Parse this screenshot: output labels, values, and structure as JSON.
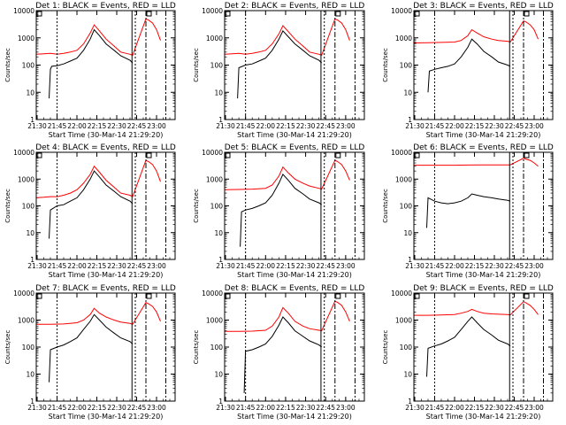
{
  "figure": {
    "panels": [
      {
        "title": "Det 1: BLACK = Events, RED = LLD",
        "xlabel": "Start Time (30-Mar-14 21:29:20)",
        "ylabel": "Counts/sec"
      },
      {
        "title": "Det 2: BLACK = Events, RED = LLD",
        "xlabel": "Start Time (30-Mar-14 21:29:20)",
        "ylabel": "Counts/sec"
      },
      {
        "title": "Det 3: BLACK = Events, RED = LLD",
        "xlabel": "Start Time (30-Mar-14 21:29:20)",
        "ylabel": "Counts/sec"
      },
      {
        "title": "Det 4: BLACK = Events, RED = LLD",
        "xlabel": "Start Time (30-Mar-14 21:29:20)",
        "ylabel": "Counts/sec"
      },
      {
        "title": "Det 5: BLACK = Events, RED = LLD",
        "xlabel": "Start Time (30-Mar-14 21:29:20)",
        "ylabel": "Counts/sec"
      },
      {
        "title": "Det 6: BLACK = Events, RED = LLD",
        "xlabel": "Start Time (30-Mar-14 21:29:20)",
        "ylabel": "Counts/sec"
      },
      {
        "title": "Det 7: BLACK = Events, RED = LLD",
        "xlabel": "Start Time (30-Mar-14 21:29:20)",
        "ylabel": "Counts/sec"
      },
      {
        "title": "Det 8: BLACK = Events, RED = LLD",
        "xlabel": "Start Time (30-Mar-14 21:29:20)",
        "ylabel": "Counts/sec"
      },
      {
        "title": "Det 9: BLACK = Events, RED = LLD",
        "xlabel": "Start Time (30-Mar-14 21:29:20)",
        "ylabel": "Counts/sec"
      }
    ],
    "xticks": [
      "21:30",
      "21:45",
      "22:00",
      "22:15",
      "22:30",
      "22:45",
      "23:00"
    ],
    "yticks": [
      "1",
      "10",
      "100",
      "1000",
      "10000"
    ],
    "colors": {
      "events": "#000000",
      "lld": "#ff0000",
      "axes": "#000000"
    }
  },
  "chart_data": [
    {
      "type": "line",
      "title": "Det 1: BLACK = Events, RED = LLD",
      "xlabel": "Start Time (30-Mar-14 21:29:20)",
      "ylabel": "Counts/sec",
      "yscale": "log",
      "ylim": [
        1,
        10000
      ],
      "xlim": [
        "21:29:20",
        "23:14"
      ],
      "series": [
        {
          "name": "Events",
          "color": "#000000",
          "x": [
            "21:39",
            "21:40",
            "21:41",
            "21:45",
            "21:50",
            "21:55",
            "22:00",
            "22:05",
            "22:10",
            "22:13",
            "22:17",
            "22:22",
            "22:28",
            "22:33",
            "22:40",
            "22:42",
            "22:45",
            "22:48",
            "22:52",
            "22:58"
          ],
          "y": [
            6,
            70,
            90,
            95,
            110,
            140,
            180,
            350,
            900,
            2000,
            1200,
            600,
            350,
            220,
            150,
            120,
            null,
            null,
            null,
            null
          ]
        },
        {
          "name": "LLD",
          "color": "#ff0000",
          "x": [
            "21:29",
            "21:35",
            "21:40",
            "21:45",
            "21:50",
            "21:55",
            "22:00",
            "22:05",
            "22:10",
            "22:13",
            "22:17",
            "22:22",
            "22:28",
            "22:33",
            "22:40",
            "22:42",
            "22:52",
            "22:54",
            "22:57",
            "23:00",
            "23:03"
          ],
          "y": [
            250,
            260,
            270,
            250,
            270,
            300,
            350,
            600,
            1500,
            3000,
            1800,
            900,
            500,
            300,
            250,
            230,
            5000,
            4500,
            3500,
            2000,
            800
          ]
        }
      ]
    },
    {
      "type": "line",
      "title": "Det 2: BLACK = Events, RED = LLD",
      "xlabel": "Start Time (30-Mar-14 21:29:20)",
      "ylabel": "Counts/sec",
      "yscale": "log",
      "ylim": [
        1,
        10000
      ],
      "xlim": [
        "21:29:20",
        "23:14"
      ],
      "series": [
        {
          "name": "Events",
          "color": "#000000",
          "x": [
            "21:39",
            "21:40",
            "21:45",
            "21:50",
            "21:55",
            "22:00",
            "22:05",
            "22:10",
            "22:13",
            "22:17",
            "22:22",
            "22:28",
            "22:33",
            "22:40",
            "22:42"
          ],
          "y": [
            6,
            80,
            100,
            110,
            140,
            180,
            350,
            900,
            1800,
            1100,
            600,
            350,
            220,
            150,
            120
          ]
        },
        {
          "name": "LLD",
          "color": "#ff0000",
          "x": [
            "21:29",
            "21:35",
            "21:40",
            "21:45",
            "21:50",
            "21:55",
            "22:00",
            "22:05",
            "22:10",
            "22:13",
            "22:17",
            "22:22",
            "22:28",
            "22:33",
            "22:40",
            "22:42",
            "22:52",
            "22:54",
            "22:57",
            "23:00",
            "23:03"
          ],
          "y": [
            250,
            260,
            270,
            250,
            270,
            300,
            350,
            600,
            1400,
            2800,
            1700,
            900,
            500,
            300,
            250,
            230,
            5000,
            4500,
            3500,
            2000,
            800
          ]
        }
      ]
    },
    {
      "type": "line",
      "title": "Det 3: BLACK = Events, RED = LLD",
      "xlabel": "Start Time (30-Mar-14 21:29:20)",
      "ylabel": "Counts/sec",
      "yscale": "log",
      "ylim": [
        1,
        10000
      ],
      "xlim": [
        "21:29:20",
        "23:14"
      ],
      "series": [
        {
          "name": "Events",
          "color": "#000000",
          "x": [
            "21:40",
            "21:41",
            "21:45",
            "21:50",
            "21:55",
            "22:00",
            "22:05",
            "22:10",
            "22:13",
            "22:17",
            "22:22",
            "22:28",
            "22:33",
            "22:40",
            "22:42"
          ],
          "y": [
            10,
            60,
            70,
            80,
            90,
            110,
            200,
            450,
            900,
            600,
            320,
            200,
            130,
            100,
            90
          ]
        },
        {
          "name": "LLD",
          "color": "#ff0000",
          "x": [
            "21:29",
            "21:40",
            "21:50",
            "22:00",
            "22:05",
            "22:10",
            "22:13",
            "22:17",
            "22:22",
            "22:28",
            "22:33",
            "22:40",
            "22:42",
            "22:52",
            "22:54",
            "22:57",
            "23:00",
            "23:03"
          ],
          "y": [
            650,
            660,
            680,
            700,
            800,
            1200,
            2000,
            1500,
            1100,
            900,
            800,
            750,
            700,
            4200,
            3800,
            3000,
            2000,
            900
          ]
        }
      ]
    },
    {
      "type": "line",
      "title": "Det 4: BLACK = Events, RED = LLD",
      "xlabel": "Start Time (30-Mar-14 21:29:20)",
      "ylabel": "Counts/sec",
      "yscale": "log",
      "ylim": [
        1,
        10000
      ],
      "xlim": [
        "21:29:20",
        "23:14"
      ],
      "series": [
        {
          "name": "Events",
          "color": "#000000",
          "x": [
            "21:39",
            "21:40",
            "21:45",
            "21:50",
            "21:55",
            "22:00",
            "22:05",
            "22:10",
            "22:13",
            "22:17",
            "22:22",
            "22:28",
            "22:33",
            "22:40",
            "22:42"
          ],
          "y": [
            6,
            70,
            100,
            110,
            150,
            200,
            400,
            1000,
            2000,
            1200,
            600,
            350,
            220,
            150,
            120
          ]
        },
        {
          "name": "LLD",
          "color": "#ff0000",
          "x": [
            "21:29",
            "21:35",
            "21:40",
            "21:45",
            "21:50",
            "21:55",
            "22:00",
            "22:05",
            "22:10",
            "22:13",
            "22:17",
            "22:22",
            "22:28",
            "22:33",
            "22:40",
            "22:42",
            "22:52",
            "22:54",
            "22:57",
            "23:00",
            "23:03"
          ],
          "y": [
            200,
            210,
            220,
            220,
            250,
            300,
            400,
            700,
            1500,
            3000,
            1800,
            900,
            500,
            300,
            250,
            220,
            5000,
            4500,
            3500,
            2000,
            800
          ]
        }
      ]
    },
    {
      "type": "line",
      "title": "Det 5: BLACK = Events, RED = LLD",
      "xlabel": "Start Time (30-Mar-14 21:29:20)",
      "ylabel": "Counts/sec",
      "yscale": "log",
      "ylim": [
        1,
        10000
      ],
      "xlim": [
        "21:29:20",
        "23:14"
      ],
      "series": [
        {
          "name": "Events",
          "color": "#000000",
          "x": [
            "21:41",
            "21:42",
            "21:45",
            "21:50",
            "21:55",
            "22:00",
            "22:05",
            "22:10",
            "22:13",
            "22:17",
            "22:22",
            "22:28",
            "22:33",
            "22:40",
            "22:42"
          ],
          "y": [
            3,
            60,
            70,
            80,
            100,
            130,
            250,
            700,
            1500,
            900,
            450,
            280,
            180,
            130,
            110
          ]
        },
        {
          "name": "LLD",
          "color": "#ff0000",
          "x": [
            "21:29",
            "21:40",
            "21:50",
            "22:00",
            "22:05",
            "22:10",
            "22:13",
            "22:17",
            "22:22",
            "22:28",
            "22:33",
            "22:40",
            "22:42",
            "22:52",
            "22:54",
            "22:57",
            "23:00",
            "23:03"
          ],
          "y": [
            400,
            410,
            420,
            450,
            600,
            1300,
            2800,
            1700,
            1000,
            700,
            550,
            450,
            420,
            5000,
            4500,
            3500,
            2000,
            900
          ]
        }
      ]
    },
    {
      "type": "line",
      "title": "Det 6: BLACK = Events, RED = LLD",
      "xlabel": "Start Time (30-Mar-14 21:29:20)",
      "ylabel": "Counts/sec",
      "yscale": "log",
      "ylim": [
        1,
        10000
      ],
      "xlim": [
        "21:29:20",
        "23:14"
      ],
      "series": [
        {
          "name": "Events",
          "color": "#000000",
          "x": [
            "21:39",
            "21:40",
            "21:45",
            "21:50",
            "21:55",
            "22:00",
            "22:05",
            "22:10",
            "22:13",
            "22:17",
            "22:22",
            "22:28",
            "22:33",
            "22:40",
            "22:42"
          ],
          "y": [
            15,
            200,
            150,
            130,
            120,
            130,
            150,
            200,
            280,
            250,
            220,
            200,
            180,
            160,
            150
          ]
        },
        {
          "name": "LLD",
          "color": "#ff0000",
          "x": [
            "21:29",
            "21:40",
            "21:50",
            "22:00",
            "22:10",
            "22:20",
            "22:30",
            "22:40",
            "22:42",
            "22:52",
            "22:54",
            "22:57",
            "23:00",
            "23:03"
          ],
          "y": [
            3300,
            3300,
            3300,
            3300,
            3350,
            3400,
            3400,
            3400,
            3400,
            6000,
            5500,
            5000,
            4000,
            3000
          ]
        }
      ]
    },
    {
      "type": "line",
      "title": "Det 7: BLACK = Events, RED = LLD",
      "xlabel": "Start Time (30-Mar-14 21:29:20)",
      "ylabel": "Counts/sec",
      "yscale": "log",
      "ylim": [
        1,
        10000
      ],
      "xlim": [
        "21:29:20",
        "23:14"
      ],
      "series": [
        {
          "name": "Events",
          "color": "#000000",
          "x": [
            "21:39",
            "21:40",
            "21:45",
            "21:50",
            "21:55",
            "22:00",
            "22:05",
            "22:10",
            "22:13",
            "22:17",
            "22:22",
            "22:28",
            "22:33",
            "22:40",
            "22:42"
          ],
          "y": [
            5,
            80,
            100,
            120,
            160,
            220,
            450,
            900,
            1600,
            1000,
            550,
            330,
            220,
            160,
            130
          ]
        },
        {
          "name": "LLD",
          "color": "#ff0000",
          "x": [
            "21:29",
            "21:40",
            "21:50",
            "22:00",
            "22:05",
            "22:10",
            "22:13",
            "22:17",
            "22:22",
            "22:28",
            "22:33",
            "22:40",
            "22:42",
            "22:52",
            "22:54",
            "22:57",
            "23:00",
            "23:03"
          ],
          "y": [
            700,
            700,
            720,
            800,
            1000,
            1600,
            2700,
            1800,
            1300,
            1000,
            850,
            750,
            700,
            4500,
            4000,
            3200,
            2000,
            900
          ]
        }
      ]
    },
    {
      "type": "line",
      "title": "Det 8: BLACK = Events, RED = LLD",
      "xlabel": "Start Time (30-Mar-14 21:29:20)",
      "ylabel": "Counts/sec",
      "yscale": "log",
      "ylim": [
        1,
        10000
      ],
      "xlim": [
        "21:29:20",
        "23:14"
      ],
      "series": [
        {
          "name": "Events",
          "color": "#000000",
          "x": [
            "21:44",
            "21:45",
            "21:50",
            "21:55",
            "22:00",
            "22:05",
            "22:10",
            "22:13",
            "22:17",
            "22:22",
            "22:28",
            "22:33",
            "22:40",
            "22:42"
          ],
          "y": [
            2,
            70,
            80,
            100,
            130,
            250,
            650,
            1300,
            800,
            400,
            250,
            170,
            120,
            100
          ]
        },
        {
          "name": "LLD",
          "color": "#ff0000",
          "x": [
            "21:29",
            "21:40",
            "21:50",
            "22:00",
            "22:05",
            "22:10",
            "22:13",
            "22:17",
            "22:22",
            "22:28",
            "22:33",
            "22:40",
            "22:42",
            "22:52",
            "22:54",
            "22:57",
            "23:00",
            "23:03"
          ],
          "y": [
            380,
            380,
            390,
            420,
            600,
            1300,
            2900,
            1800,
            900,
            600,
            480,
            420,
            400,
            5000,
            4500,
            3500,
            2000,
            900
          ]
        }
      ]
    },
    {
      "type": "line",
      "title": "Det 9: BLACK = Events, RED = LLD",
      "xlabel": "Start Time (30-Mar-14 21:29:20)",
      "ylabel": "Counts/sec",
      "yscale": "log",
      "ylim": [
        1,
        10000
      ],
      "xlim": [
        "21:29:20",
        "23:14"
      ],
      "series": [
        {
          "name": "Events",
          "color": "#000000",
          "x": [
            "21:39",
            "21:40",
            "21:45",
            "21:50",
            "21:55",
            "22:00",
            "22:05",
            "22:10",
            "22:13",
            "22:17",
            "22:22",
            "22:28",
            "22:33",
            "22:40",
            "22:42"
          ],
          "y": [
            8,
            90,
            110,
            130,
            170,
            230,
            450,
            900,
            1300,
            800,
            450,
            280,
            180,
            130,
            110
          ]
        },
        {
          "name": "LLD",
          "color": "#ff0000",
          "x": [
            "21:29",
            "21:40",
            "21:50",
            "22:00",
            "22:05",
            "22:10",
            "22:13",
            "22:17",
            "22:22",
            "22:28",
            "22:33",
            "22:40",
            "22:42",
            "22:52",
            "22:54",
            "22:57",
            "23:00",
            "23:03"
          ],
          "y": [
            1500,
            1500,
            1550,
            1600,
            1800,
            2100,
            2500,
            2100,
            1800,
            1700,
            1650,
            1600,
            1550,
            4800,
            4300,
            3500,
            2500,
            1600
          ]
        }
      ]
    }
  ]
}
